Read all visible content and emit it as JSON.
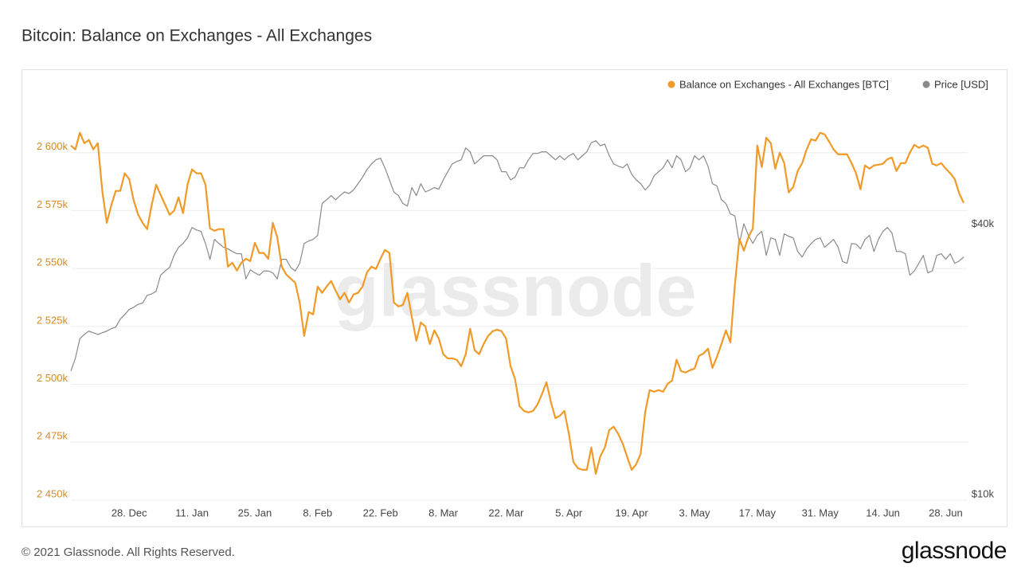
{
  "chart_data": {
    "type": "line",
    "title": "Bitcoin: Balance on Exchanges - All Exchanges",
    "watermark": "glassnode",
    "legend": "top-right",
    "grid": true,
    "y2log": true,
    "categories": [
      null,
      null,
      null,
      null,
      null,
      null,
      null,
      null,
      null,
      null,
      null,
      null,
      null,
      "28. Dec",
      null,
      null,
      null,
      null,
      null,
      null,
      null,
      null,
      null,
      null,
      null,
      null,
      null,
      "11. Jan",
      null,
      null,
      null,
      null,
      null,
      null,
      null,
      null,
      null,
      null,
      null,
      null,
      null,
      "25. Jan",
      null,
      null,
      null,
      null,
      null,
      null,
      null,
      null,
      null,
      null,
      null,
      null,
      null,
      "8. Feb",
      null,
      null,
      null,
      null,
      null,
      null,
      null,
      null,
      null,
      null,
      null,
      null,
      null,
      "22. Feb",
      null,
      null,
      null,
      null,
      null,
      null,
      null,
      null,
      null,
      null,
      null,
      null,
      null,
      "8. Mar",
      null,
      null,
      null,
      null,
      null,
      null,
      null,
      null,
      null,
      null,
      null,
      null,
      null,
      "22. Mar",
      null,
      null,
      null,
      null,
      null,
      null,
      null,
      null,
      null,
      null,
      null,
      null,
      null,
      "5. Apr",
      null,
      null,
      null,
      null,
      null,
      null,
      null,
      null,
      null,
      null,
      null,
      null,
      null,
      "19. Apr",
      null,
      null,
      null,
      null,
      null,
      null,
      null,
      null,
      null,
      null,
      null,
      null,
      null,
      "3. May",
      null,
      null,
      null,
      null,
      null,
      null,
      null,
      null,
      null,
      null,
      null,
      null,
      null,
      "17. May",
      null,
      null,
      null,
      null,
      null,
      null,
      null,
      null,
      null,
      null,
      null,
      null,
      null,
      "31. May",
      null,
      null,
      null,
      null,
      null,
      null,
      null,
      null,
      null,
      null,
      null,
      null,
      null,
      "14. Jun",
      null,
      null,
      null,
      null,
      null,
      null,
      null,
      null,
      null,
      null,
      null,
      null,
      null,
      "28. Jun",
      null,
      null,
      null,
      null
    ],
    "ylim": [
      2450000,
      2625000
    ],
    "yticks": [
      {
        "value": 2450000,
        "label": "2 450k"
      },
      {
        "value": 2475000,
        "label": "2 475k"
      },
      {
        "value": 2500000,
        "label": "2 500k"
      },
      {
        "value": 2525000,
        "label": "2 525k"
      },
      {
        "value": 2550000,
        "label": "2 550k"
      },
      {
        "value": 2575000,
        "label": "2 575k"
      },
      {
        "value": 2600000,
        "label": "2 600k"
      }
    ],
    "y2lim": [
      10000,
      80000
    ],
    "y2ticks": [
      {
        "value": 10000,
        "label": "$10k"
      },
      {
        "value": 40000,
        "label": "$40k"
      }
    ],
    "series": [
      {
        "name": "Balance on Exchanges - All Exchanges [BTC]",
        "color": "#f09a28",
        "values": [
          2603100,
          2601400,
          2608600,
          2604100,
          2605500,
          2601400,
          2604100,
          2583500,
          2569700,
          2577300,
          2583500,
          2583500,
          2591100,
          2588600,
          2579400,
          2573200,
          2569700,
          2567000,
          2577300,
          2586200,
          2581800,
          2577600,
          2573200,
          2574900,
          2580700,
          2573900,
          2586200,
          2592800,
          2591100,
          2591100,
          2586200,
          2567300,
          2566300,
          2567000,
          2567000,
          2550800,
          2552500,
          2549100,
          2552500,
          2554200,
          2553200,
          2561100,
          2556700,
          2556700,
          2554200,
          2569700,
          2563500,
          2550800,
          2547400,
          2545600,
          2543900,
          2535300,
          2520900,
          2531200,
          2530200,
          2542200,
          2539500,
          2542200,
          2544600,
          2540500,
          2536700,
          2539500,
          2535300,
          2538800,
          2539500,
          2542200,
          2548400,
          2550800,
          2549800,
          2554200,
          2558000,
          2556700,
          2535300,
          2533600,
          2534300,
          2539500,
          2529100,
          2518800,
          2526700,
          2525000,
          2517400,
          2523300,
          2519800,
          2513000,
          2511200,
          2511200,
          2510600,
          2507800,
          2513000,
          2524000,
          2514700,
          2513000,
          2517400,
          2520900,
          2522900,
          2523600,
          2522900,
          2519800,
          2507800,
          2502300,
          2490600,
          2488500,
          2487900,
          2488500,
          2491300,
          2495800,
          2500900,
          2492300,
          2485400,
          2486500,
          2488500,
          2478600,
          2466500,
          2463800,
          2463100,
          2463100,
          2472700,
          2461400,
          2468900,
          2472700,
          2480300,
          2481700,
          2478600,
          2474400,
          2468600,
          2463100,
          2465500,
          2470000,
          2487900,
          2497500,
          2496800,
          2497500,
          2496800,
          2500200,
          2501600,
          2510600,
          2505700,
          2505100,
          2506100,
          2506800,
          2512300,
          2513300,
          2515400,
          2507100,
          2511900,
          2517400,
          2523300,
          2518100,
          2542900,
          2562800,
          2557700,
          2563500,
          2567300,
          2603100,
          2593800,
          2606500,
          2604100,
          2593100,
          2600000,
          2595500,
          2582800,
          2585200,
          2592100,
          2595500,
          2601400,
          2605800,
          2605200,
          2608600,
          2607900,
          2604800,
          2601400,
          2599300,
          2599300,
          2599300,
          2595500,
          2591100,
          2584200,
          2594500,
          2593100,
          2594500,
          2594800,
          2595200,
          2597200,
          2597900,
          2592100,
          2595500,
          2595500,
          2600000,
          2603400,
          2602100,
          2603100,
          2602100,
          2595200,
          2594500,
          2595500,
          2593100,
          2591100,
          2588600,
          2582500,
          2578300
        ]
      },
      {
        "name": "Price [USD]",
        "color": "#8a8a8a",
        "axis": "y2",
        "values": [
          19400,
          20700,
          22900,
          23400,
          23800,
          23600,
          23400,
          23600,
          23800,
          24100,
          24300,
          25300,
          25900,
          26600,
          26900,
          27300,
          27500,
          28600,
          28800,
          29200,
          31700,
          32400,
          33000,
          35100,
          36600,
          37300,
          38400,
          40500,
          40000,
          39700,
          37300,
          34400,
          38100,
          37300,
          36600,
          36300,
          35800,
          35400,
          35400,
          31100,
          32600,
          32100,
          31700,
          32400,
          32400,
          32100,
          31100,
          34400,
          34400,
          33000,
          32400,
          33700,
          37300,
          37800,
          38100,
          38900,
          45800,
          46700,
          47700,
          46700,
          47700,
          48600,
          48200,
          49100,
          50700,
          52400,
          54500,
          56100,
          57300,
          57800,
          55000,
          51700,
          48600,
          47700,
          45800,
          45200,
          49700,
          47700,
          50700,
          48600,
          49100,
          49700,
          49300,
          51700,
          53900,
          56100,
          56800,
          57300,
          60900,
          59700,
          56100,
          57300,
          58500,
          58500,
          58500,
          57300,
          53900,
          53900,
          51700,
          52400,
          55000,
          55000,
          57300,
          59200,
          59200,
          59700,
          59700,
          58500,
          57300,
          58500,
          57300,
          58500,
          59200,
          57300,
          58500,
          59700,
          62600,
          63200,
          61600,
          62100,
          58500,
          56100,
          55500,
          55000,
          56100,
          53200,
          51700,
          50700,
          49100,
          50300,
          52800,
          53900,
          55000,
          57300,
          55000,
          58500,
          57300,
          53900,
          55000,
          58500,
          57300,
          58500,
          55500,
          50700,
          50100,
          46700,
          45800,
          43400,
          43000,
          37300,
          41300,
          38900,
          37300,
          38900,
          39700,
          35100,
          38400,
          38100,
          35100,
          39200,
          38700,
          38400,
          35800,
          34800,
          36300,
          37300,
          38100,
          38400,
          36600,
          37300,
          38100,
          36600,
          34000,
          33700,
          37300,
          37200,
          36300,
          38100,
          38900,
          35800,
          38100,
          39700,
          40500,
          39400,
          35800,
          35800,
          35400,
          31700,
          32400,
          33700,
          35100,
          32100,
          32400,
          35100,
          35400,
          34400,
          35400,
          33700,
          34100,
          34800
        ]
      }
    ]
  },
  "footer": {
    "copyright": "© 2021 Glassnode. All Rights Reserved.",
    "brand": "glassnode"
  }
}
